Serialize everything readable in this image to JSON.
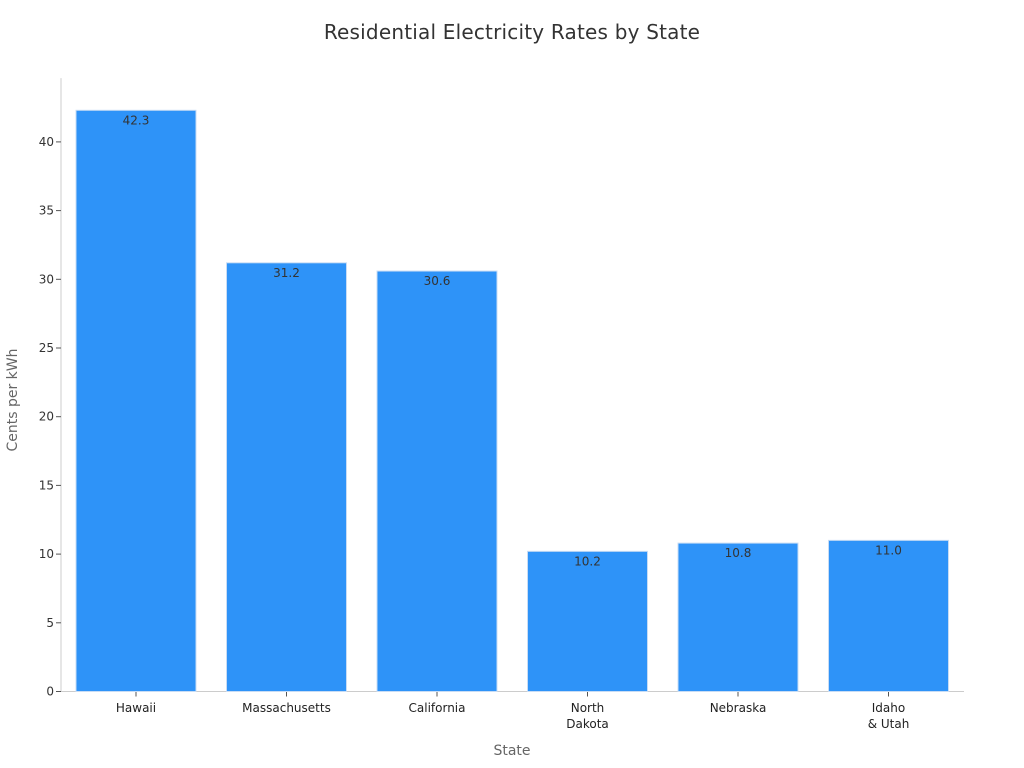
{
  "chart_data": {
    "type": "bar",
    "title": "Residential Electricity Rates by State",
    "xlabel": "State",
    "ylabel": "Cents per kWh",
    "categories": [
      "Hawaii",
      "Massachusetts",
      "California",
      "North\nDakota",
      "Nebraska",
      "Idaho\n& Utah"
    ],
    "values": [
      42.3,
      31.2,
      30.6,
      10.2,
      10.8,
      11.0
    ],
    "data_labels": [
      "42.3",
      "31.2",
      "30.6",
      "10.2",
      "10.8",
      "11.0"
    ],
    "ylim": [
      0,
      44.5
    ],
    "yticks": [
      0,
      5,
      10,
      15,
      20,
      25,
      30,
      35,
      40
    ],
    "grid": false,
    "bar_color": "#2e93f8"
  }
}
